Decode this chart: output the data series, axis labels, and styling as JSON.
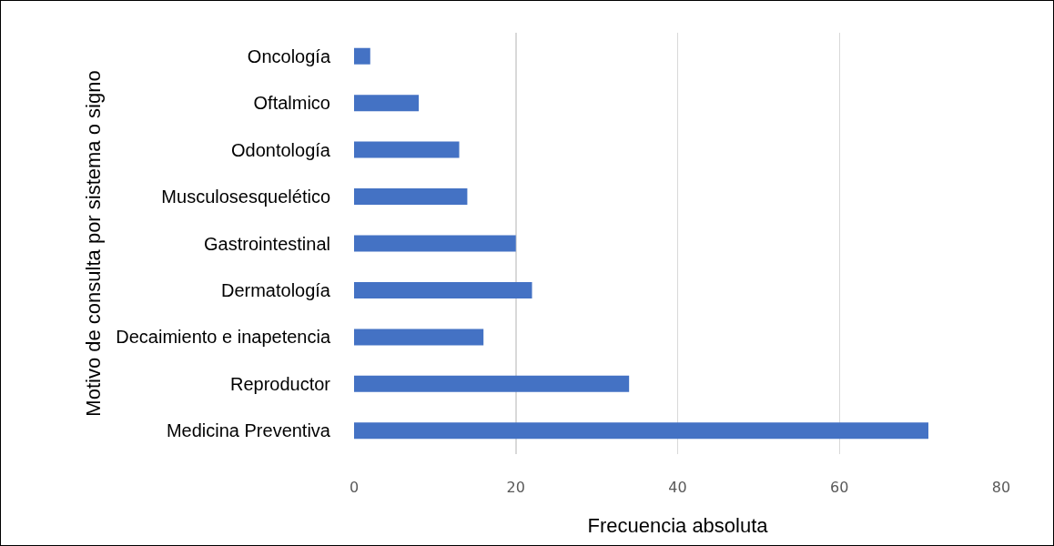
{
  "chart_data": {
    "type": "bar",
    "orientation": "horizontal",
    "xlabel": "Frecuencia absoluta",
    "ylabel": "Motivo de consulta por sistema o signo",
    "categories": [
      "Oncología",
      "Oftalmico",
      "Odontología",
      "Musculosesquelético",
      "Gastrointestinal",
      "Dermatología",
      "Decaimiento e inapetencia",
      "Reproductor",
      "Medicina Preventiva"
    ],
    "values": [
      2,
      8,
      13,
      14,
      20,
      22,
      16,
      34,
      71
    ],
    "color": "#4472c4",
    "xlim": [
      0,
      80
    ],
    "xticks": [
      0,
      20,
      40,
      60,
      80
    ],
    "grid": "x"
  }
}
